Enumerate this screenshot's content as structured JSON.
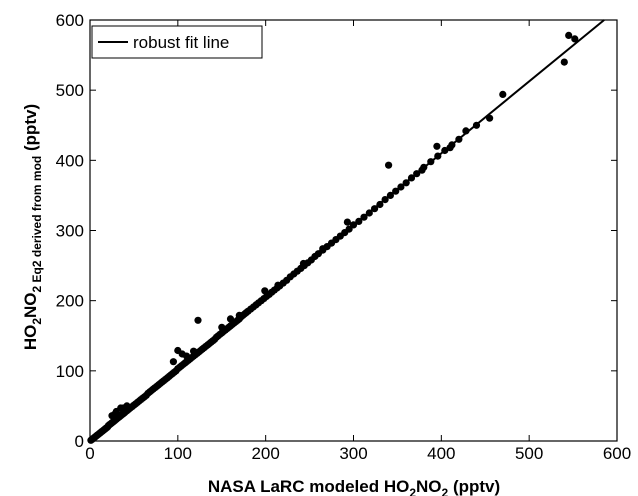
{
  "chart_data": {
    "type": "scatter",
    "title": "",
    "xlabel": {
      "main": "NASA LaRC modeled HO",
      "sub1": "2",
      "mid": "NO",
      "sub2": "2",
      "tail": " (pptv)"
    },
    "ylabel": {
      "main": "HO",
      "sub1": "2",
      "mid": "NO",
      "sub2": "2",
      "sub3": " Eq2 derived from mod",
      "tail": " (pptv)"
    },
    "xlim": [
      0,
      600
    ],
    "ylim": [
      0,
      600
    ],
    "xticks": [
      0,
      100,
      200,
      300,
      400,
      500,
      600
    ],
    "yticks": [
      0,
      100,
      200,
      300,
      400,
      500,
      600
    ],
    "grid": false,
    "legend": {
      "position": "top-left",
      "entries": [
        "robust fit line"
      ]
    },
    "fit_line": {
      "name": "robust fit line",
      "x": [
        0,
        600
      ],
      "y": [
        0,
        615
      ]
    },
    "points": {
      "x": [
        1,
        2,
        3,
        4,
        5,
        6,
        7,
        8,
        9,
        10,
        11,
        12,
        13,
        14,
        15,
        16,
        17,
        18,
        19,
        20,
        21,
        22,
        23,
        24,
        25,
        26,
        27,
        28,
        29,
        30,
        31,
        32,
        33,
        34,
        35,
        36,
        37,
        38,
        39,
        40,
        42,
        44,
        46,
        48,
        50,
        52,
        54,
        56,
        58,
        60,
        62,
        64,
        66,
        68,
        70,
        72,
        74,
        76,
        78,
        80,
        82,
        84,
        86,
        88,
        90,
        92,
        94,
        96,
        98,
        100,
        102,
        104,
        106,
        108,
        110,
        112,
        114,
        116,
        118,
        120,
        122,
        124,
        126,
        128,
        130,
        132,
        134,
        136,
        138,
        140,
        142,
        144,
        146,
        148,
        150,
        152,
        154,
        156,
        158,
        160,
        162,
        164,
        166,
        168,
        170,
        172,
        174,
        176,
        178,
        180,
        183,
        186,
        189,
        192,
        195,
        198,
        201,
        204,
        207,
        210,
        213,
        216,
        220,
        224,
        228,
        232,
        236,
        240,
        244,
        248,
        252,
        256,
        260,
        265,
        270,
        275,
        280,
        285,
        290,
        295,
        300,
        306,
        312,
        318,
        324,
        330,
        336,
        342,
        348,
        354,
        360,
        366,
        372,
        380,
        388,
        396,
        404,
        412,
        420,
        440,
        455,
        470,
        540,
        545,
        552,
        30,
        35,
        38,
        42,
        25,
        28,
        95,
        100,
        105,
        110,
        118,
        123,
        150,
        160,
        170,
        199,
        214,
        243,
        265,
        293,
        340,
        378,
        395,
        410,
        428
      ],
      "y": [
        1,
        2,
        3,
        4,
        5,
        6,
        7,
        8,
        9,
        10,
        11,
        12,
        13,
        14,
        15,
        16,
        17,
        18,
        19,
        20,
        22,
        23,
        24,
        25,
        26,
        27,
        28,
        29,
        30,
        31,
        32,
        33,
        34,
        35,
        36,
        37,
        38,
        39,
        40,
        41,
        43,
        45,
        47,
        49,
        51,
        53,
        55,
        57,
        59,
        61,
        63,
        65,
        68,
        70,
        72,
        74,
        76,
        78,
        80,
        82,
        84,
        86,
        88,
        90,
        92,
        94,
        96,
        98,
        100,
        103,
        105,
        107,
        109,
        111,
        113,
        115,
        117,
        119,
        121,
        123,
        125,
        127,
        129,
        131,
        133,
        135,
        137,
        139,
        141,
        143,
        145,
        148,
        150,
        152,
        154,
        156,
        158,
        160,
        162,
        164,
        166,
        168,
        170,
        172,
        174,
        177,
        179,
        181,
        183,
        185,
        188,
        191,
        194,
        197,
        200,
        203,
        206,
        209,
        212,
        215,
        218,
        221,
        225,
        229,
        234,
        238,
        242,
        246,
        250,
        254,
        258,
        263,
        267,
        272,
        277,
        282,
        287,
        292,
        297,
        302,
        308,
        313,
        319,
        325,
        331,
        337,
        344,
        350,
        356,
        362,
        368,
        375,
        381,
        390,
        398,
        406,
        414,
        422,
        430,
        450,
        460,
        494,
        540,
        578,
        573,
        42,
        47,
        47,
        50,
        36,
        38,
        113,
        129,
        124,
        121,
        128,
        172,
        162,
        174,
        179,
        214,
        222,
        253,
        274,
        312,
        393,
        386,
        420,
        418,
        442
      ]
    }
  }
}
